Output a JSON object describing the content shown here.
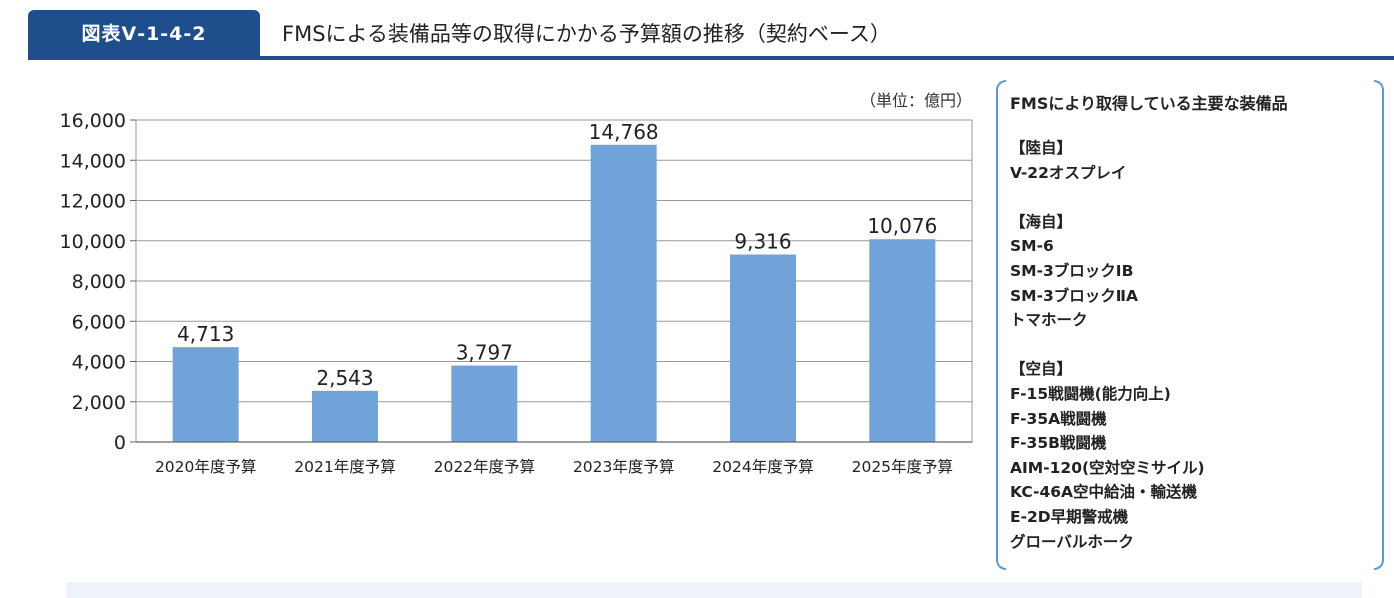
{
  "header": {
    "figure_label": "図表Ⅴ-1-4-2",
    "title": "FMSによる装備品等の取得にかかる予算額の推移（契約ベース）"
  },
  "chart_data": {
    "type": "bar",
    "title": "",
    "unit_note": "（単位：億円）",
    "categories": [
      "2020年度予算",
      "2021年度予算",
      "2022年度予算",
      "2023年度予算",
      "2024年度予算",
      "2025年度予算"
    ],
    "values": [
      4713,
      2543,
      3797,
      14768,
      9316,
      10076
    ],
    "value_labels": [
      "4,713",
      "2,543",
      "3,797",
      "14,768",
      "9,316",
      "10,076"
    ],
    "yticks": [
      0,
      2000,
      4000,
      6000,
      8000,
      10000,
      12000,
      14000,
      16000
    ],
    "ytick_labels": [
      "0",
      "2,000",
      "4,000",
      "6,000",
      "8,000",
      "10,000",
      "12,000",
      "14,000",
      "16,000"
    ],
    "ylim": [
      0,
      16000
    ],
    "grid": true,
    "bar_color": "#6fa3d9",
    "xlabel": "",
    "ylabel": ""
  },
  "side_panel": {
    "title": "FMSにより取得している主要な装備品",
    "groups": [
      {
        "heading": "【陸自】",
        "items": [
          "V-22オスプレイ"
        ]
      },
      {
        "heading": "【海自】",
        "items": [
          "SM-6",
          "SM-3ブロックⅠB",
          "SM-3ブロックⅡA",
          "トマホーク"
        ]
      },
      {
        "heading": "【空自】",
        "items": [
          "F-15戦闘機(能力向上)",
          "F-35A戦闘機",
          "F-35B戦闘機",
          "AIM-120(空対空ミサイル)",
          "KC-46A空中給油・輸送機",
          "E-2D早期警戒機",
          "グローバルホーク"
        ]
      }
    ]
  },
  "colors": {
    "header_blue": "#1f4e8c",
    "bar": "#6fa3d9",
    "bracket": "#5b9bd5"
  }
}
